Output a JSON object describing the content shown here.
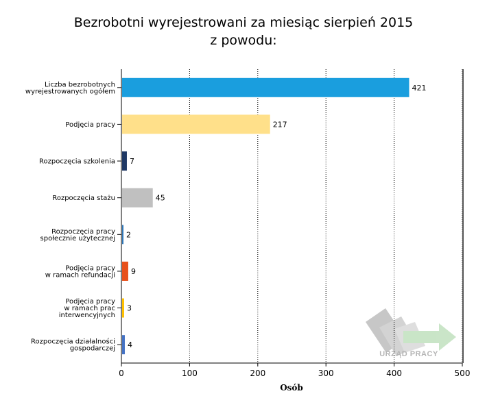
{
  "chart_data": {
    "type": "bar",
    "orientation": "horizontal",
    "title": "Bezrobotni wyrejestrowani za miesiąc sierpień 2015",
    "subtitle": "z powodu:",
    "xlabel": "Osób",
    "ylabel": "",
    "xlim": [
      0,
      500
    ],
    "xticks": [
      0,
      100,
      200,
      300,
      400,
      500
    ],
    "grid": "vertical dotted",
    "categories": [
      [
        "Liczba bezrobotnych",
        "wyrejestrowanych ogółem"
      ],
      [
        "Podjęcia pracy"
      ],
      [
        "Rozpoczęcia szkolenia"
      ],
      [
        "Rozpoczęcia stażu"
      ],
      [
        "Rozpoczęcia pracy",
        "społecznie użytecznej"
      ],
      [
        "Podjęcia pracy",
        "w ramach refundacji"
      ],
      [
        "Podjęcia pracy",
        "w ramach prac",
        "interwencyjnych"
      ],
      [
        "Rozpoczęcia działalności",
        "gospodarczej"
      ]
    ],
    "values": [
      421,
      217,
      7,
      45,
      2,
      9,
      3,
      4
    ],
    "colors": [
      "#1a9ede",
      "#ffe08a",
      "#1f3864",
      "#c0c0c0",
      "#2e75b6",
      "#e8501a",
      "#ffc000",
      "#4472c4"
    ]
  },
  "watermark": {
    "text": "URZĄD PRACY",
    "icon": "arrow-logo-icon"
  }
}
